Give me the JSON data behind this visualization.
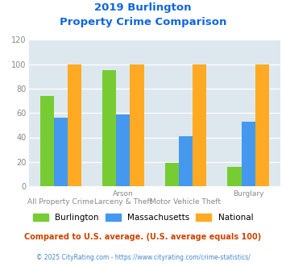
{
  "title_line1": "2019 Burlington",
  "title_line2": "Property Crime Comparison",
  "cat_labels_top": [
    "",
    "Arson",
    "",
    "Burglary"
  ],
  "cat_labels_bot": [
    "All Property Crime",
    "Larceny & Theft",
    "Motor Vehicle Theft",
    ""
  ],
  "burlington": [
    74,
    95,
    19,
    16
  ],
  "massachusetts": [
    56,
    59,
    41,
    53
  ],
  "national": [
    100,
    100,
    100,
    100
  ],
  "bar_colors": {
    "burlington": "#77cc33",
    "massachusetts": "#4499ee",
    "national": "#ffaa22"
  },
  "ylim": [
    0,
    120
  ],
  "yticks": [
    0,
    20,
    40,
    60,
    80,
    100,
    120
  ],
  "legend_labels": [
    "Burlington",
    "Massachusetts",
    "National"
  ],
  "footnote1": "Compared to U.S. average. (U.S. average equals 100)",
  "footnote2": "© 2025 CityRating.com - https://www.cityrating.com/crime-statistics/",
  "title_color": "#1166dd",
  "footnote1_color": "#cc4400",
  "footnote2_color": "#4488cc",
  "bg_color": "#dde8ee",
  "grid_color": "#ffffff"
}
